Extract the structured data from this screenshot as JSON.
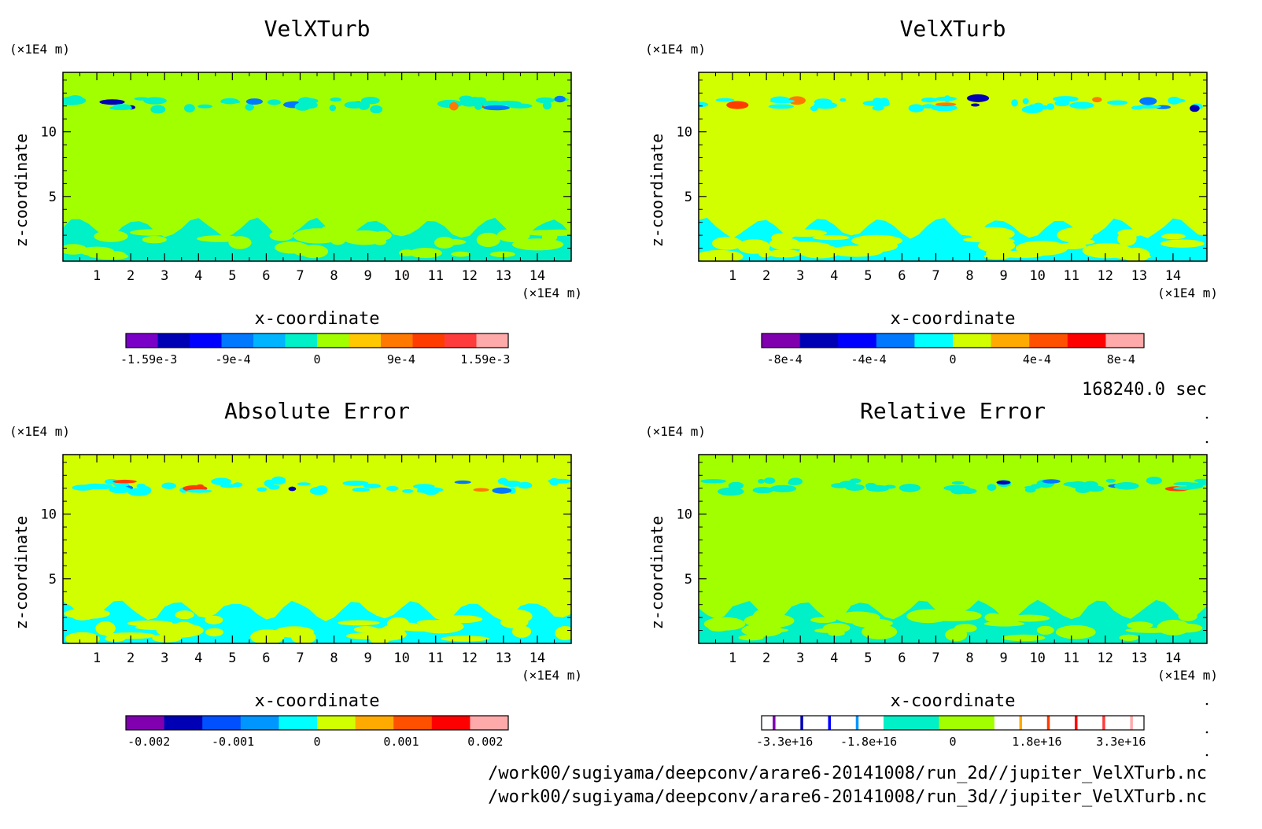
{
  "timestamp": "168240.0 sec",
  "file_paths": [
    "/work00/sugiyama/deepconv/arare6-20141008/run_2d//jupiter_VelXTurb.nc",
    "/work00/sugiyama/deepconv/arare6-20141008/run_3d//jupiter_VelXTurb.nc"
  ],
  "chart_data": [
    {
      "type": "heatmap",
      "title": "VelXTurb",
      "xlabel": "x-coordinate",
      "ylabel": "z-coordinate",
      "x_unit": "(×1E4 m)",
      "y_unit": "(×1E4 m)",
      "xlim": [
        0,
        15
      ],
      "ylim": [
        0,
        14.6
      ],
      "xticks": [
        "1",
        "2",
        "3",
        "4",
        "5",
        "6",
        "7",
        "8",
        "9",
        "10",
        "11",
        "12",
        "13",
        "14"
      ],
      "yticks": [
        "5",
        "10"
      ],
      "background_color": "#a2ff00",
      "colorbar": {
        "colors": [
          "#7a00c8",
          "#0000b4",
          "#0000ff",
          "#0078ff",
          "#00b4ff",
          "#00f0c8",
          "#a2ff00",
          "#ffc800",
          "#ff7800",
          "#ff3c00",
          "#ff3c3c",
          "#ffaaaa"
        ],
        "labels": [
          "-1.59e-3",
          "-9e-4",
          "0",
          "9e-4",
          "1.59e-3"
        ]
      },
      "features": {
        "bottom_color": "#00f0c8",
        "band_colors": [
          "#00f0c8",
          "#0078ff",
          "#ff7800",
          "#0000b4",
          "#ff3c00"
        ]
      }
    },
    {
      "type": "heatmap",
      "title": "VelXTurb",
      "xlabel": "x-coordinate",
      "ylabel": "z-coordinate",
      "x_unit": "(×1E4 m)",
      "y_unit": "(×1E4 m)",
      "xlim": [
        0,
        15
      ],
      "ylim": [
        0,
        14.6
      ],
      "xticks": [
        "1",
        "2",
        "3",
        "4",
        "5",
        "6",
        "7",
        "8",
        "9",
        "10",
        "11",
        "12",
        "13",
        "14"
      ],
      "yticks": [
        "5",
        "10"
      ],
      "background_color": "#d2ff00",
      "colorbar": {
        "colors": [
          "#8000b0",
          "#0000b4",
          "#0000ff",
          "#0078ff",
          "#00ffff",
          "#d2ff00",
          "#ffaa00",
          "#ff5000",
          "#ff0000",
          "#ffaaaa"
        ],
        "labels": [
          "-8e-4",
          "-4e-4",
          "0",
          "4e-4",
          "8e-4"
        ]
      },
      "features": {
        "bottom_color": "#00ffff",
        "band_colors": [
          "#00ffff",
          "#0078ff",
          "#ff7800",
          "#0000b4",
          "#ff3c00"
        ]
      }
    },
    {
      "type": "heatmap",
      "title": "Absolute Error",
      "xlabel": "x-coordinate",
      "ylabel": "z-coordinate",
      "x_unit": "(×1E4 m)",
      "y_unit": "(×1E4 m)",
      "xlim": [
        0,
        15
      ],
      "ylim": [
        0,
        14.6
      ],
      "xticks": [
        "1",
        "2",
        "3",
        "4",
        "5",
        "6",
        "7",
        "8",
        "9",
        "10",
        "11",
        "12",
        "13",
        "14"
      ],
      "yticks": [
        "5",
        "10"
      ],
      "background_color": "#d2ff00",
      "colorbar": {
        "colors": [
          "#8000b0",
          "#0000b4",
          "#0050ff",
          "#0096ff",
          "#00ffff",
          "#d2ff00",
          "#ffaa00",
          "#ff5000",
          "#ff0000",
          "#ffaaaa"
        ],
        "labels": [
          "-0.002",
          "-0.001",
          "0",
          "0.001",
          "0.002"
        ]
      },
      "features": {
        "bottom_color": "#00ffff",
        "band_colors": [
          "#00ffff",
          "#0078ff",
          "#ff7800",
          "#0000b4",
          "#ff3c00"
        ]
      }
    },
    {
      "type": "heatmap",
      "title": "Relative Error",
      "xlabel": "x-coordinate",
      "ylabel": "z-coordinate",
      "x_unit": "(×1E4 m)",
      "y_unit": "(×1E4 m)",
      "xlim": [
        0,
        15
      ],
      "ylim": [
        0,
        14.6
      ],
      "xticks": [
        "1",
        "2",
        "3",
        "4",
        "5",
        "6",
        "7",
        "8",
        "9",
        "10",
        "11",
        "12",
        "13",
        "14"
      ],
      "yticks": [
        "5",
        "10"
      ],
      "background_color": "#a2ff00",
      "colorbar": {
        "colors": [
          "#ffffff",
          "#8000b0",
          "#ffffff",
          "#0000b4",
          "#ffffff",
          "#0000ff",
          "#ffffff",
          "#0096ff",
          "#ffffff",
          "#00f0c8",
          "#a2ff00",
          "#ffffff",
          "#ffaa00",
          "#ffffff",
          "#ff3c00",
          "#ffffff",
          "#ff0000",
          "#ffffff",
          "#ff3c3c",
          "#ffffff",
          "#ffaaaa",
          "#ffffff"
        ],
        "weights": [
          4,
          1,
          9,
          1,
          9,
          1,
          9,
          1,
          9,
          20,
          20,
          9,
          1,
          9,
          1,
          9,
          1,
          9,
          1,
          9,
          1,
          4
        ],
        "labels": [
          "-3.3e+16",
          "-1.8e+16",
          "0",
          "1.8e+16",
          "3.3e+16"
        ]
      },
      "features": {
        "bottom_color": "#00f0c8",
        "band_colors": [
          "#00f0c8",
          "#0078ff",
          "#ff3c00",
          "#0000b4"
        ]
      }
    }
  ]
}
